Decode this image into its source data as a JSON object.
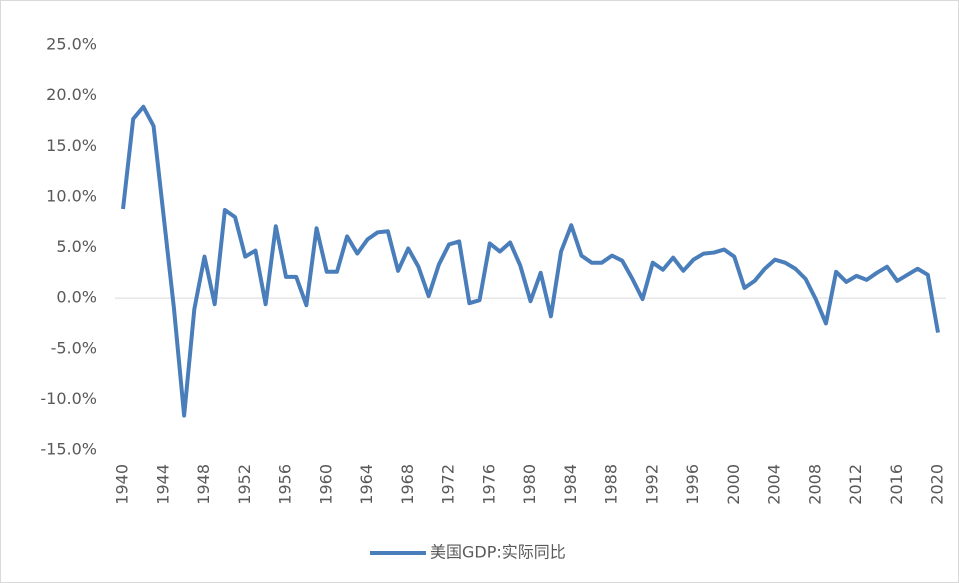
{
  "chart_data": {
    "type": "line",
    "x": [
      1940,
      1941,
      1942,
      1943,
      1944,
      1945,
      1946,
      1947,
      1948,
      1949,
      1950,
      1951,
      1952,
      1953,
      1954,
      1955,
      1956,
      1957,
      1958,
      1959,
      1960,
      1961,
      1962,
      1963,
      1964,
      1965,
      1966,
      1967,
      1968,
      1969,
      1970,
      1971,
      1972,
      1973,
      1974,
      1975,
      1976,
      1977,
      1978,
      1979,
      1980,
      1981,
      1982,
      1983,
      1984,
      1985,
      1986,
      1987,
      1988,
      1989,
      1990,
      1991,
      1992,
      1993,
      1994,
      1995,
      1996,
      1997,
      1998,
      1999,
      2000,
      2001,
      2002,
      2003,
      2004,
      2005,
      2006,
      2007,
      2008,
      2009,
      2010,
      2011,
      2012,
      2013,
      2014,
      2015,
      2016,
      2017,
      2018,
      2019,
      2020
    ],
    "series": [
      {
        "name": "美国GDP:实际同比",
        "color": "#4a7ebb",
        "values": [
          8.8,
          17.7,
          18.9,
          17.0,
          8.0,
          -1.0,
          -11.6,
          -1.1,
          4.1,
          -0.6,
          8.7,
          8.0,
          4.1,
          4.7,
          -0.6,
          7.1,
          2.1,
          2.1,
          -0.7,
          6.9,
          2.6,
          2.6,
          6.1,
          4.4,
          5.8,
          6.5,
          6.6,
          2.7,
          4.9,
          3.1,
          0.2,
          3.3,
          5.3,
          5.6,
          -0.5,
          -0.2,
          5.4,
          4.6,
          5.5,
          3.2,
          -0.3,
          2.5,
          -1.8,
          4.6,
          7.2,
          4.2,
          3.5,
          3.5,
          4.2,
          3.7,
          1.9,
          -0.1,
          3.5,
          2.8,
          4.0,
          2.7,
          3.8,
          4.4,
          4.5,
          4.8,
          4.1,
          1.0,
          1.7,
          2.9,
          3.8,
          3.5,
          2.9,
          1.9,
          -0.1,
          -2.5,
          2.6,
          1.6,
          2.2,
          1.8,
          2.5,
          3.1,
          1.7,
          2.3,
          2.9,
          2.3,
          -3.4
        ]
      }
    ],
    "xlim": [
      1940,
      2020
    ],
    "xticks": [
      1940,
      1944,
      1948,
      1952,
      1956,
      1960,
      1964,
      1968,
      1972,
      1976,
      1980,
      1984,
      1988,
      1992,
      1996,
      2000,
      2004,
      2008,
      2012,
      2016,
      2020
    ],
    "ylim": [
      -15,
      25
    ],
    "yticks": [
      {
        "value": -15,
        "label": "-15.0%"
      },
      {
        "value": -10,
        "label": "-10.0%"
      },
      {
        "value": -5,
        "label": "-5.0%"
      },
      {
        "value": 0,
        "label": "0.0%"
      },
      {
        "value": 5,
        "label": "5.0%"
      },
      {
        "value": 10,
        "label": "10.0%"
      },
      {
        "value": 15,
        "label": "15.0%"
      },
      {
        "value": 20,
        "label": "20.0%"
      },
      {
        "value": 25,
        "label": "25.0%"
      }
    ],
    "grid": false,
    "legend": "bottom"
  }
}
